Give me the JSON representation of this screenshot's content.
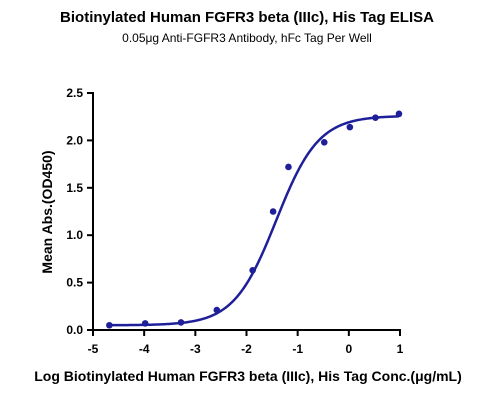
{
  "chart_data": {
    "type": "scatter",
    "title": "Biotinylated Human FGFR3 beta (IIIc), His Tag ELISA",
    "subtitle": "0.05μg Anti-FGFR3 Antibody, hFc Tag Per Well",
    "xlabel": "Log Biotinylated Human FGFR3 beta (IIIc), His Tag Conc.(μg/mL)",
    "ylabel": "Mean Abs.(OD450)",
    "xlim": [
      -5,
      1
    ],
    "ylim": [
      0.0,
      2.5
    ],
    "xticks": [
      "-5",
      "-4",
      "-3",
      "-2",
      "-1",
      "0",
      "1"
    ],
    "yticks": [
      "0.0",
      "0.5",
      "1.0",
      "1.5",
      "2.0",
      "2.5"
    ],
    "grid": false,
    "legend": "none",
    "series": [
      {
        "x": [
          -4.68,
          -3.98,
          -3.28,
          -2.58,
          -1.88,
          -1.48,
          -1.18,
          -0.48,
          0.02,
          0.52,
          0.98
        ],
        "y": [
          0.05,
          0.07,
          0.08,
          0.21,
          0.63,
          1.25,
          1.72,
          1.98,
          2.14,
          2.24,
          2.28
        ],
        "fit": "4PL",
        "color": "#1f1f9a"
      }
    ]
  }
}
